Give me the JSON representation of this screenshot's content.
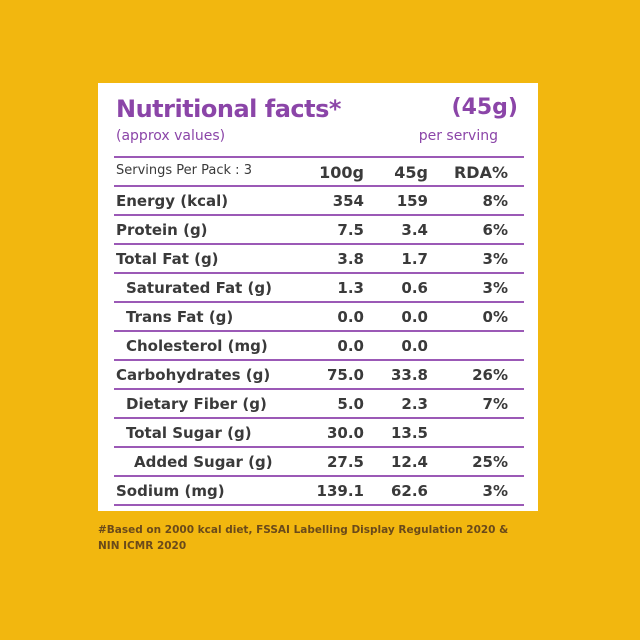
{
  "header": {
    "title": "Nutritional facts*",
    "serving_size": "(45g)",
    "subtitle": "(approx values)",
    "per_serving": "per serving"
  },
  "columns": {
    "label": "Servings Per Pack : 3",
    "col1": "100g",
    "col2": "45g",
    "col3": "RDA%"
  },
  "rows": [
    {
      "label": "Energy (kcal)",
      "v100": "354",
      "v45": "159",
      "rda": "8%"
    },
    {
      "label": "Protein (g)",
      "v100": "7.5",
      "v45": "3.4",
      "rda": "6%"
    },
    {
      "label": "Total Fat (g)",
      "v100": "3.8",
      "v45": "1.7",
      "rda": "3%"
    },
    {
      "label": "Saturated Fat (g)",
      "v100": "1.3",
      "v45": "0.6",
      "rda": "3%"
    },
    {
      "label": "Trans Fat (g)",
      "v100": "0.0",
      "v45": "0.0",
      "rda": "0%"
    },
    {
      "label": "Cholesterol (mg)",
      "v100": "0.0",
      "v45": "0.0",
      "rda": ""
    },
    {
      "label": "Carbohydrates (g)",
      "v100": "75.0",
      "v45": "33.8",
      "rda": "26%"
    },
    {
      "label": "Dietary Fiber (g)",
      "v100": "5.0",
      "v45": "2.3",
      "rda": "7%"
    },
    {
      "label": "Total Sugar (g)",
      "v100": "30.0",
      "v45": "13.5",
      "rda": ""
    },
    {
      "label": "Added Sugar (g)",
      "v100": "27.5",
      "v45": "12.4",
      "rda": "25%"
    },
    {
      "label": "Sodium (mg)",
      "v100": "139.1",
      "v45": "62.6",
      "rda": "3%"
    }
  ],
  "footnote": "#Based on 2000 kcal diet, FSSAI Labelling Display Regulation 2020 & NIN ICMR 2020",
  "colors": {
    "background": "#F2B70F",
    "accent": "#8B45A8",
    "rule": "#9B59B6"
  }
}
